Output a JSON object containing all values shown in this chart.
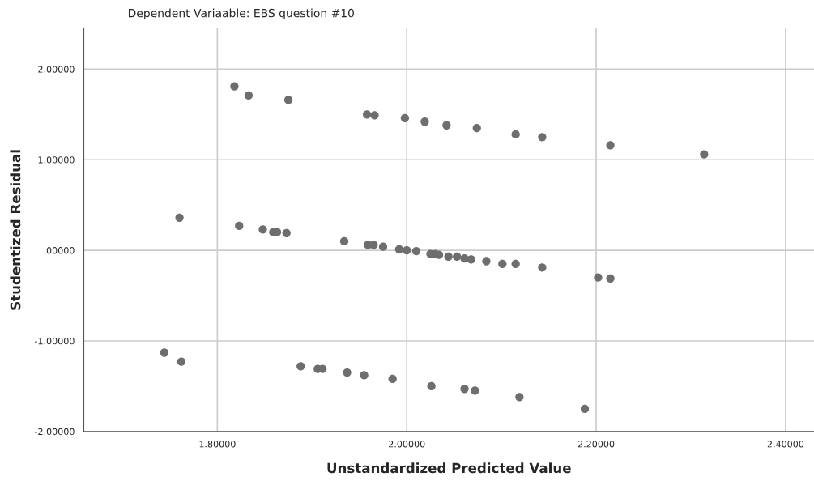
{
  "chart_data": {
    "type": "scatter",
    "title": "Dependent Variaable: EBS question #10",
    "xlabel": "Unstandardized Predicted Value",
    "ylabel": "Studentized Residual",
    "x": [
      1.818,
      1.833,
      1.875,
      1.958,
      1.966,
      1.998,
      2.019,
      2.042,
      2.074,
      2.115,
      2.143,
      2.215,
      2.314,
      1.76,
      1.823,
      1.848,
      1.859,
      1.863,
      1.873,
      1.934,
      1.959,
      1.965,
      1.975,
      1.992,
      2.0,
      2.01,
      2.025,
      2.03,
      2.034,
      2.044,
      2.053,
      2.061,
      2.068,
      2.084,
      2.101,
      2.115,
      2.143,
      2.202,
      2.215,
      1.744,
      1.762,
      1.888,
      1.906,
      1.911,
      1.937,
      1.955,
      1.985,
      2.026,
      2.061,
      2.072,
      2.119,
      2.188
    ],
    "values": [
      1.81,
      1.71,
      1.66,
      1.5,
      1.49,
      1.46,
      1.42,
      1.38,
      1.35,
      1.28,
      1.25,
      1.16,
      1.06,
      0.36,
      0.27,
      0.23,
      0.2,
      0.2,
      0.19,
      0.1,
      0.06,
      0.06,
      0.04,
      0.01,
      0.0,
      -0.01,
      -0.04,
      -0.04,
      -0.05,
      -0.07,
      -0.07,
      -0.09,
      -0.1,
      -0.12,
      -0.15,
      -0.15,
      -0.19,
      -0.3,
      -0.31,
      -1.13,
      -1.23,
      -1.28,
      -1.31,
      -1.31,
      -1.35,
      -1.38,
      -1.42,
      -1.5,
      -1.53,
      -1.55,
      -1.62,
      -1.75
    ],
    "color": "#6e6e6e",
    "marker": "circle",
    "xlim": [
      1.659,
      2.43
    ],
    "ylim": [
      -2.0,
      2.45
    ],
    "xticks": [
      {
        "value": 1.8,
        "label": "1.80000"
      },
      {
        "value": 2.0,
        "label": "2.00000"
      },
      {
        "value": 2.2,
        "label": "2.20000"
      },
      {
        "value": 2.4,
        "label": "2.40000"
      }
    ],
    "yticks": [
      {
        "value": -2.0,
        "label": "-2.00000"
      },
      {
        "value": -1.0,
        "label": "-1.00000"
      },
      {
        "value": 0.0,
        "label": ".00000"
      },
      {
        "value": 1.0,
        "label": "1.00000"
      },
      {
        "value": 2.0,
        "label": "2.00000"
      }
    ],
    "grid": true
  }
}
